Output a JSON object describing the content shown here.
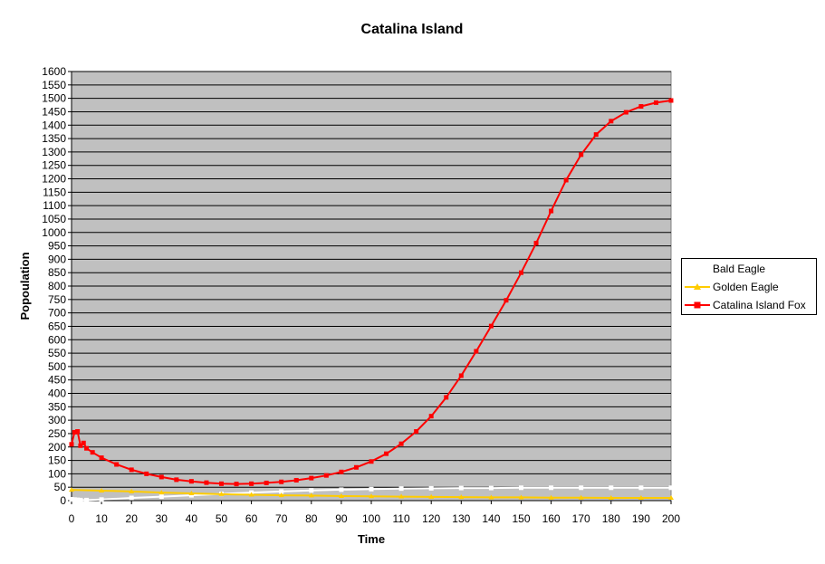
{
  "chart_data": {
    "type": "line",
    "title": "Catalina Island",
    "xlabel": "Time",
    "ylabel": "Popoulation",
    "xlim": [
      0,
      200
    ],
    "ylim": [
      0,
      1600
    ],
    "x_ticks": [
      "0",
      "10",
      "20",
      "30",
      "40",
      "50",
      "60",
      "70",
      "80",
      "90",
      "100",
      "110",
      "120",
      "130",
      "140",
      "150",
      "160",
      "170",
      "180",
      "190",
      "200"
    ],
    "y_ticks": [
      "0",
      "50",
      "100",
      "150",
      "200",
      "250",
      "300",
      "350",
      "400",
      "450",
      "500",
      "550",
      "600",
      "650",
      "700",
      "750",
      "800",
      "850",
      "900",
      "950",
      "1000",
      "1050",
      "1100",
      "1150",
      "1200",
      "1250",
      "1300",
      "1350",
      "1400",
      "1450",
      "1500",
      "1550",
      "1600"
    ],
    "grid": true,
    "legend_position": "right",
    "plot_background": "#c0c0c0",
    "series": [
      {
        "name": "Bald Eagle",
        "color": "#ffffff",
        "marker": "square",
        "x": [
          0,
          1,
          2,
          3,
          5,
          10,
          20,
          30,
          40,
          50,
          60,
          70,
          80,
          90,
          100,
          110,
          120,
          130,
          140,
          150,
          160,
          170,
          180,
          190,
          200
        ],
        "y": [
          5,
          4,
          3,
          2,
          2,
          4,
          10,
          15,
          20,
          25,
          30,
          34,
          38,
          41,
          43,
          45,
          46,
          47,
          47,
          48,
          48,
          48,
          48,
          48,
          48
        ]
      },
      {
        "name": "Golden Eagle",
        "color": "#ffcc00",
        "marker": "triangle",
        "x": [
          0,
          10,
          20,
          30,
          40,
          50,
          60,
          70,
          80,
          90,
          100,
          110,
          120,
          130,
          140,
          150,
          160,
          170,
          180,
          190,
          200
        ],
        "y": [
          40,
          37,
          34,
          30,
          27,
          24,
          22,
          20,
          19,
          17,
          16,
          15,
          14,
          13,
          12,
          12,
          11,
          11,
          10,
          10,
          10
        ]
      },
      {
        "name": "Catalina Island Fox",
        "color": "#ff0000",
        "marker": "square",
        "x": [
          0,
          1,
          2,
          3,
          4,
          5,
          7,
          10,
          15,
          20,
          25,
          30,
          35,
          40,
          45,
          50,
          55,
          60,
          65,
          70,
          75,
          80,
          85,
          90,
          95,
          100,
          105,
          110,
          115,
          120,
          125,
          130,
          135,
          140,
          145,
          150,
          155,
          160,
          165,
          170,
          175,
          180,
          185,
          190,
          195,
          200
        ],
        "y": [
          210,
          255,
          258,
          205,
          215,
          195,
          180,
          160,
          135,
          115,
          100,
          88,
          78,
          72,
          67,
          63,
          62,
          63,
          66,
          70,
          76,
          84,
          94,
          107,
          124,
          146,
          175,
          212,
          258,
          315,
          385,
          466,
          557,
          651,
          747,
          850,
          960,
          1080,
          1195,
          1290,
          1365,
          1415,
          1448,
          1470,
          1484,
          1492
        ]
      }
    ]
  },
  "legend": {
    "items": [
      "Bald Eagle",
      "Golden Eagle",
      "Catalina Island Fox"
    ]
  }
}
